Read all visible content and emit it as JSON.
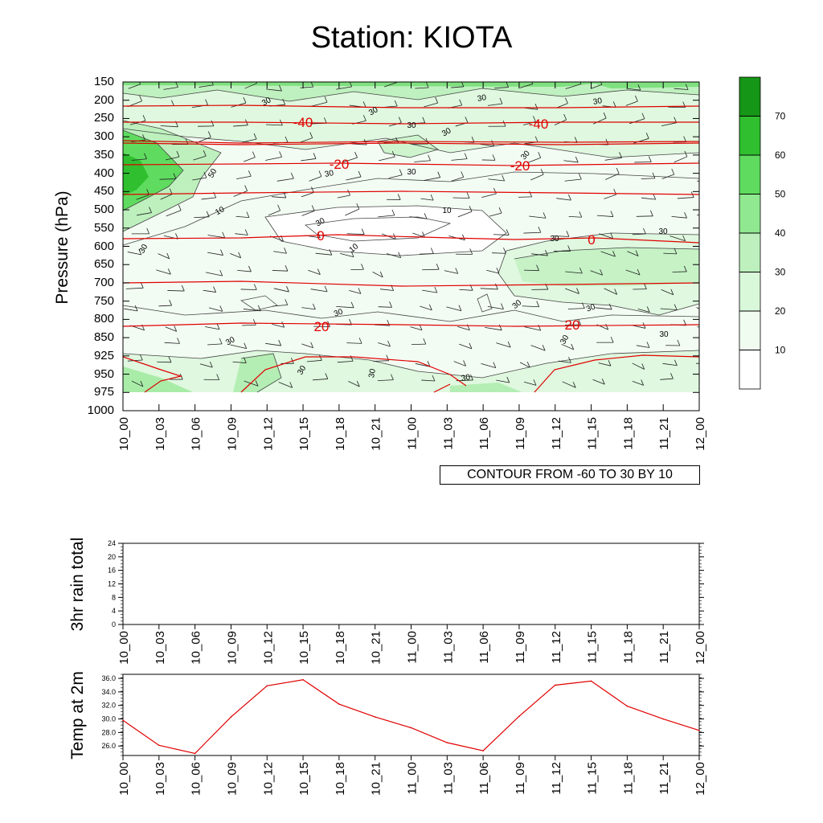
{
  "title": "Station: KIOTA",
  "main_panel": {
    "ylabel": "Pressure (hPa)",
    "pressure_levels": [
      "150",
      "200",
      "250",
      "300",
      "350",
      "400",
      "450",
      "500",
      "550",
      "600",
      "650",
      "700",
      "750",
      "800",
      "850",
      "925",
      "950",
      "975",
      "1000"
    ],
    "time_labels": [
      "10_00",
      "10_03",
      "10_06",
      "10_09",
      "10_12",
      "10_15",
      "10_18",
      "10_21",
      "11_00",
      "11_03",
      "11_06",
      "11_09",
      "11_12",
      "11_15",
      "11_18",
      "11_21",
      "12_00"
    ],
    "contour_info": "CONTOUR FROM -60 TO 30 BY 10",
    "temperature_contour_labels": [
      "-40",
      "-40",
      "-20",
      "-20",
      "0",
      "0",
      "20",
      "20"
    ],
    "rh_contour_labels": [
      "30",
      "30",
      "30",
      "30",
      "30",
      "30",
      "30",
      "30",
      "30",
      "50",
      "30",
      "10",
      "10",
      "10",
      "30",
      "30",
      "30",
      "30",
      "30",
      "30",
      "30",
      "30",
      "30",
      "30",
      "30",
      "30"
    ],
    "colorbar_labels": [
      "10",
      "20",
      "30",
      "40",
      "50",
      "60",
      "70"
    ],
    "colorbar_colors": [
      "#ffffff",
      "#f0fcf0",
      "#d9f7d9",
      "#bdf0bd",
      "#90e890",
      "#5fdc5f",
      "#2fbf2f",
      "#169616"
    ]
  },
  "rain_panel": {
    "ylabel": "3hr rain total",
    "yticks": [
      "0",
      "4",
      "8",
      "12",
      "16",
      "20",
      "24"
    ],
    "time_labels": [
      "10_00",
      "10_03",
      "10_06",
      "10_09",
      "10_12",
      "10_15",
      "10_18",
      "10_21",
      "11_00",
      "11_03",
      "11_06",
      "11_09",
      "11_12",
      "11_15",
      "11_18",
      "11_21",
      "12_00"
    ]
  },
  "temp_panel": {
    "ylabel": "Temp at 2m",
    "yticks": [
      "26.0",
      "28.0",
      "30.0",
      "32.0",
      "34.0",
      "36.0"
    ],
    "time_labels": [
      "10_00",
      "10_03",
      "10_06",
      "10_09",
      "10_12",
      "10_15",
      "10_18",
      "10_21",
      "11_00",
      "11_03",
      "11_06",
      "11_09",
      "11_12",
      "11_15",
      "11_18",
      "11_21",
      "12_00"
    ]
  },
  "chart_data": [
    {
      "type": "heatmap",
      "title": "Station: KIOTA",
      "ylabel": "Pressure (hPa)",
      "xlabel": "",
      "y_reversed": true,
      "ylim": [
        150,
        1000
      ],
      "x": [
        "10_00",
        "10_03",
        "10_06",
        "10_09",
        "10_12",
        "10_15",
        "10_18",
        "10_21",
        "11_00",
        "11_03",
        "11_06",
        "11_09",
        "11_12",
        "11_15",
        "11_18",
        "11_21",
        "12_00"
      ],
      "contour_levels_temperature": [
        -60,
        -50,
        -40,
        -30,
        -20,
        -10,
        0,
        10,
        20,
        30
      ],
      "contour_levels_rh": [
        10,
        20,
        30,
        40,
        50,
        60,
        70
      ],
      "annotation": "CONTOUR FROM -60 TO 30 BY 10"
    },
    {
      "type": "line",
      "ylabel": "3hr rain total",
      "x": [
        "10_00",
        "10_03",
        "10_06",
        "10_09",
        "10_12",
        "10_15",
        "10_18",
        "10_21",
        "11_00",
        "11_03",
        "11_06",
        "11_09",
        "11_12",
        "11_15",
        "11_18",
        "11_21",
        "12_00"
      ],
      "values": [
        0,
        0,
        0,
        0,
        0,
        0,
        0,
        0,
        0,
        0,
        0,
        0,
        0,
        0,
        0,
        0,
        0
      ],
      "ylim": [
        0,
        24
      ]
    },
    {
      "type": "line",
      "ylabel": "Temp at 2m",
      "x": [
        "10_00",
        "10_03",
        "10_06",
        "10_09",
        "10_12",
        "10_15",
        "10_18",
        "10_21",
        "11_00",
        "11_03",
        "11_06",
        "11_09",
        "11_12",
        "11_15",
        "11_18",
        "11_21",
        "12_00"
      ],
      "values": [
        29.8,
        26.1,
        24.9,
        30.3,
        34.9,
        35.8,
        32.2,
        30.3,
        28.7,
        26.5,
        25.3,
        30.4,
        35.0,
        35.6,
        31.9,
        30.0,
        28.3
      ],
      "ylim": [
        24.6,
        36.6
      ],
      "color": "#e00000"
    }
  ]
}
